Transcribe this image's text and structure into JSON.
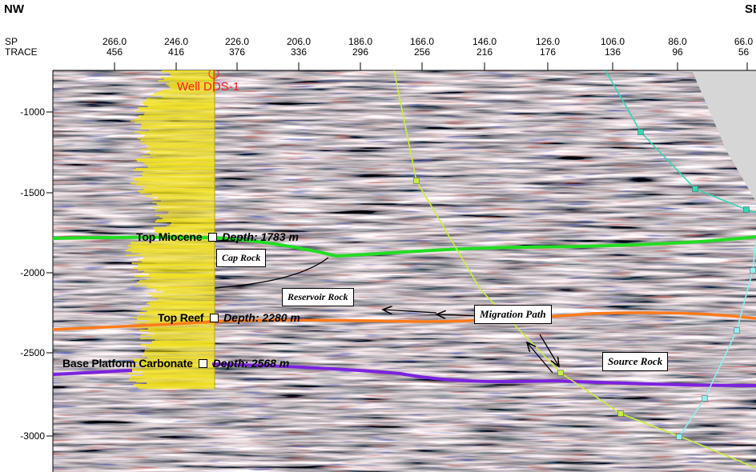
{
  "header": {
    "left_direction": "NW",
    "right_direction": "SE",
    "sp_label": "SP",
    "trace_label": "TRACE"
  },
  "axis": {
    "ticks": [
      {
        "sp": "266.0",
        "trace": "456"
      },
      {
        "sp": "246.0",
        "trace": "416"
      },
      {
        "sp": "226.0",
        "trace": "376"
      },
      {
        "sp": "206.0",
        "trace": "336"
      },
      {
        "sp": "186.0",
        "trace": "296"
      },
      {
        "sp": "166.0",
        "trace": "256"
      },
      {
        "sp": "146.0",
        "trace": "216"
      },
      {
        "sp": "126.0",
        "trace": "176"
      },
      {
        "sp": "106.0",
        "trace": "136"
      },
      {
        "sp": "86.0",
        "trace": "96"
      },
      {
        "sp": "66.0",
        "trace": "56"
      }
    ],
    "depths": [
      "-1000",
      "-1500",
      "-2000",
      "-2500",
      "-3000"
    ]
  },
  "well": {
    "name": "Well DDS-1"
  },
  "horizons": [
    {
      "name": "Top Miocene",
      "depth_text": "Depth: 1783 m",
      "depth": 1783,
      "color": "#22dd22"
    },
    {
      "name": "Top Reef",
      "depth_text": "Depth: 2280 m",
      "depth": 2280,
      "color": "#ff7a1a"
    },
    {
      "name": "Base Platform Carbonate",
      "depth_text": "Depth: 2568 m",
      "depth": 2568,
      "color": "#7b22e0"
    }
  ],
  "annotations": {
    "cap_rock": "Cap Rock",
    "reservoir_rock": "Reservoir Rock",
    "migration_path": "Migration Path",
    "source_rock": "Source Rock"
  },
  "colors": {
    "fault_main": "#c8f03a",
    "fault_upper": "#33d6b5",
    "fault_lower": "#8ff0f0",
    "well_log": "#f2e21a",
    "well_text": "#ff1a1a"
  }
}
